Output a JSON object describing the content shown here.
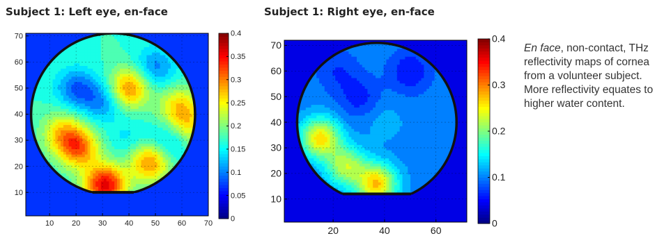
{
  "chart_data": [
    {
      "type": "heatmap",
      "title": "Subject 1: Left eye, en-face",
      "xlabel": "",
      "ylabel": "",
      "x_ticks": [
        10,
        20,
        30,
        40,
        50,
        60,
        70
      ],
      "y_ticks": [
        10,
        20,
        30,
        40,
        50,
        60,
        70
      ],
      "xlim": [
        1,
        70
      ],
      "ylim": [
        1,
        71
      ],
      "colorbar": {
        "min": 0,
        "max": 0.4,
        "ticks": [
          0,
          0.05,
          0.1,
          0.15,
          0.2,
          0.25,
          0.3,
          0.35,
          0.4
        ],
        "tick_labels": [
          "0",
          "0.05",
          "0.1",
          "0.15",
          "0.2",
          "0.25",
          "0.3",
          "0.35",
          "0.4"
        ]
      },
      "colormap": "jet",
      "background_value": 0.07,
      "region": {
        "shape": "circle-truncated",
        "center": [
          34,
          40
        ],
        "radius": 31,
        "bottom_cut": 10
      },
      "base_value": 0.17,
      "features": [
        {
          "x": 31,
          "y": 13,
          "value": 0.36
        },
        {
          "x": 40,
          "y": 50,
          "value": 0.3
        },
        {
          "x": 48,
          "y": 22,
          "value": 0.3
        },
        {
          "x": 21,
          "y": 27,
          "value": 0.3
        },
        {
          "x": 15,
          "y": 33,
          "value": 0.26
        },
        {
          "x": 59,
          "y": 43,
          "value": 0.26
        },
        {
          "x": 63,
          "y": 35,
          "value": 0.24
        },
        {
          "x": 30,
          "y": 45,
          "value": 0.1
        },
        {
          "x": 20,
          "y": 50,
          "value": 0.09
        },
        {
          "x": 50,
          "y": 58,
          "value": 0.1
        },
        {
          "x": 55,
          "y": 29,
          "value": 0.11
        },
        {
          "x": 40,
          "y": 30,
          "value": 0.14
        }
      ]
    },
    {
      "type": "heatmap",
      "title": "Subject 1: Right eye, en-face",
      "xlabel": "",
      "ylabel": "",
      "x_ticks": [
        20,
        40,
        60
      ],
      "y_ticks": [
        10,
        20,
        30,
        40,
        50,
        60,
        70
      ],
      "xlim": [
        1,
        72
      ],
      "ylim": [
        1,
        72
      ],
      "colorbar": {
        "min": 0,
        "max": 0.4,
        "ticks": [
          0,
          0.1,
          0.2,
          0.3,
          0.4
        ],
        "tick_labels": [
          "0",
          "0.1",
          "0.2",
          "0.3",
          "0.4"
        ]
      },
      "colormap": "jet",
      "background_value": 0.04,
      "region": {
        "shape": "circle-truncated",
        "center": [
          37,
          40
        ],
        "radius": 31,
        "bottom_cut": 12
      },
      "base_value": 0.1,
      "features": [
        {
          "x": 15,
          "y": 34,
          "value": 0.26
        },
        {
          "x": 37,
          "y": 16,
          "value": 0.27
        },
        {
          "x": 25,
          "y": 23,
          "value": 0.22
        },
        {
          "x": 40,
          "y": 40,
          "value": 0.12
        },
        {
          "x": 30,
          "y": 50,
          "value": 0.06
        },
        {
          "x": 50,
          "y": 60,
          "value": 0.05
        },
        {
          "x": 22,
          "y": 60,
          "value": 0.07
        },
        {
          "x": 60,
          "y": 30,
          "value": 0.11
        }
      ]
    }
  ],
  "caption": {
    "italic": "En face",
    "text": ", non-contact, THz reflectivity maps of cornea from a volunteer subject. More reflectivity equates to higher water content."
  }
}
